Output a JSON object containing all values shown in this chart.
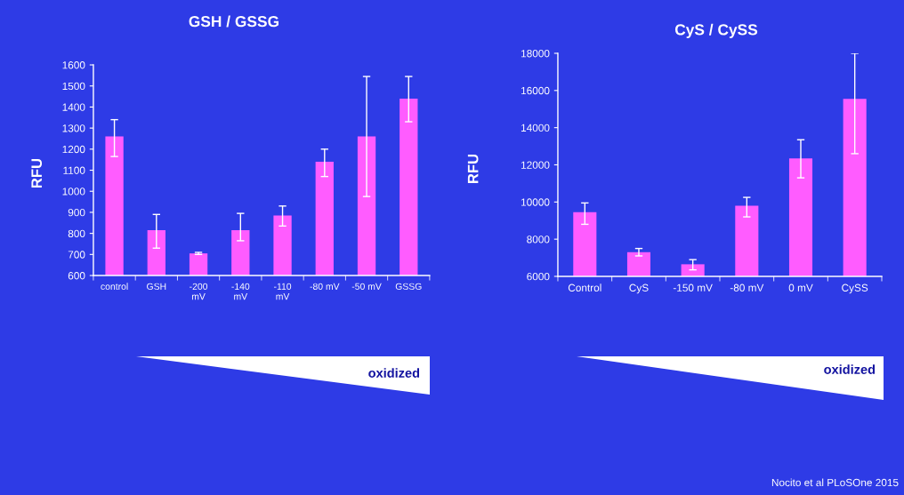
{
  "chart_data": [
    {
      "type": "bar",
      "title": "GSH / GSSG",
      "ylabel": "RFU",
      "categories": [
        "control",
        "GSH",
        "-200\nmV",
        "-140\nmV",
        "-110\nmV",
        "-80 mV",
        "-50 mV",
        "GSSG"
      ],
      "values": [
        1260,
        815,
        705,
        815,
        885,
        1140,
        1260,
        1440
      ],
      "errors": [
        [
          1165,
          1340
        ],
        [
          730,
          890
        ],
        [
          700,
          710
        ],
        [
          765,
          895
        ],
        [
          835,
          930
        ],
        [
          1070,
          1200
        ],
        [
          975,
          1545
        ],
        [
          1330,
          1545
        ]
      ],
      "color": "#ff5cff",
      "ylim": [
        600,
        1600
      ],
      "yticks": [
        600,
        700,
        800,
        900,
        1000,
        1100,
        1200,
        1300,
        1400,
        1500,
        1600
      ],
      "annotations": [
        "oxidized"
      ]
    },
    {
      "type": "bar",
      "title": "CyS / CySS",
      "ylabel": "RFU",
      "categories": [
        "Control",
        "CyS",
        "-150 mV",
        "-80 mV",
        "0 mV",
        "CySS"
      ],
      "values": [
        9450,
        7300,
        6650,
        9800,
        12350,
        15550
      ],
      "errors": [
        [
          8800,
          9950
        ],
        [
          7100,
          7500
        ],
        [
          6350,
          6900
        ],
        [
          9200,
          10250
        ],
        [
          11300,
          13350
        ],
        [
          12600,
          18000
        ]
      ],
      "color": "#ff5cff",
      "ylim": [
        6000,
        18000
      ],
      "yticks": [
        6000,
        8000,
        10000,
        12000,
        14000,
        16000,
        18000
      ],
      "annotations": [
        "oxidized",
        "Nocito et al PLoSOne 2015"
      ]
    }
  ]
}
